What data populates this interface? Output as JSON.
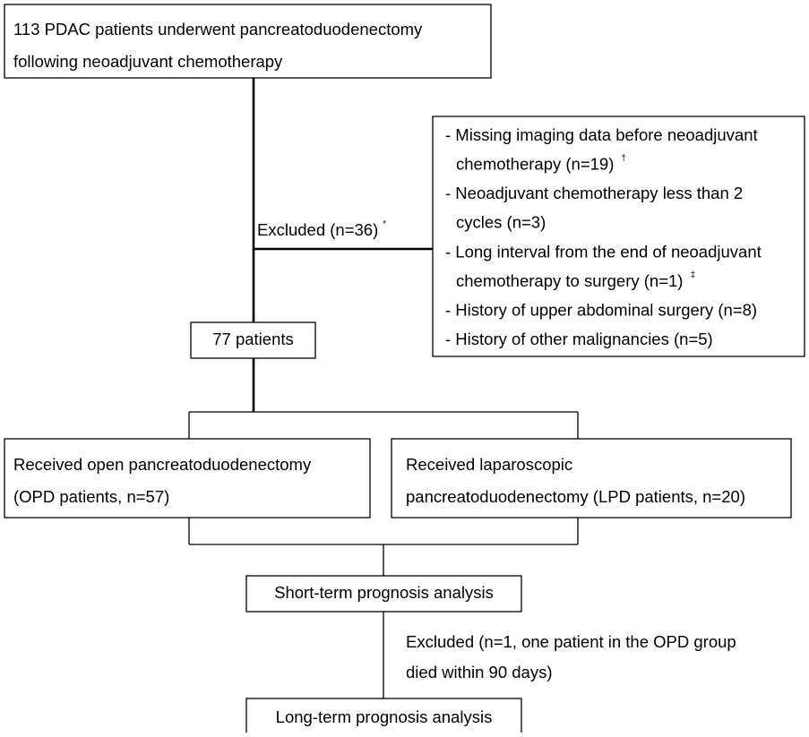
{
  "start": {
    "lines": [
      "113 PDAC patients underwent pancreatoduodenectomy",
      "following neoadjuvant chemotherapy"
    ]
  },
  "exclusion_1": {
    "label": "Excluded (n=36)",
    "mark": "*",
    "lines": [
      {
        "text": "- Missing imaging data before neoadjuvant"
      },
      {
        "text": "chemotherapy (n=19)",
        "mark": "†"
      },
      {
        "text": "- Neoadjuvant chemotherapy less than 2"
      },
      {
        "text": "cycles (n=3)"
      },
      {
        "text": "- Long interval from the end of neoadjuvant"
      },
      {
        "text": "chemotherapy to surgery (n=1)",
        "mark": "‡"
      },
      {
        "text": "- History of upper abdominal surgery (n=8)"
      },
      {
        "text": "- History of other malignancies (n=5)"
      }
    ]
  },
  "included": {
    "label": "77 patients"
  },
  "group_open": {
    "lines": [
      "Received open pancreatoduodenectomy",
      "(OPD patients, n=57)"
    ]
  },
  "group_laparoscopic": {
    "lines": [
      "Received laparoscopic",
      "pancreatoduodenectomy (LPD patients, n=20)"
    ]
  },
  "short_term": {
    "label": "Short-term prognosis analysis"
  },
  "exclusion_2": {
    "lines": [
      "Excluded (n=1, one patient in the OPD group",
      "died within 90 days)"
    ]
  },
  "long_term": {
    "label": "Long-term prognosis analysis"
  }
}
